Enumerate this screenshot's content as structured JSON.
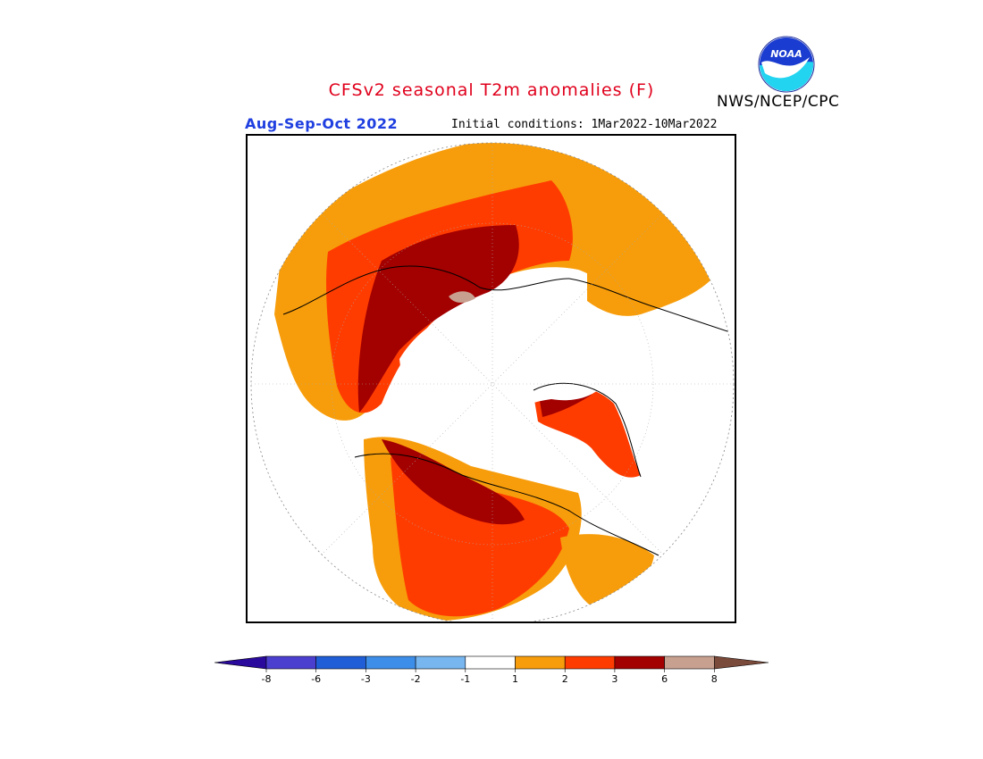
{
  "header": {
    "title": "CFSv2 seasonal T2m anomalies (F)",
    "period": "Aug-Sep-Oct 2022",
    "initial_conditions": "Initial conditions: 1Mar2022-10Mar2022",
    "agency": "NWS/NCEP/CPC",
    "logo_text": "NOAA"
  },
  "colors": {
    "title": "#e0001c",
    "period": "#1f3fe0",
    "bins": [
      "#2a0a9c",
      "#4b3fcf",
      "#1f5ed6",
      "#3d8ee8",
      "#78b6f0",
      "#ffffff",
      "#f79d0b",
      "#ff3c00",
      "#a30000",
      "#c8a090",
      "#7a4a3a"
    ]
  },
  "legend": {
    "tick_labels": [
      "-8",
      "-6",
      "-3",
      "-2",
      "-1",
      "1",
      "2",
      "3",
      "6",
      "8"
    ]
  },
  "map": {
    "projection": "north-polar-stereographic",
    "categories": [
      {
        "range": "1 to 2",
        "color": "#f79d0b"
      },
      {
        "range": "2 to 3",
        "color": "#ff3c00"
      },
      {
        "range": "3 to 6",
        "color": "#a30000"
      },
      {
        "range": "6 to 8",
        "color": "#c8a090"
      }
    ]
  }
}
